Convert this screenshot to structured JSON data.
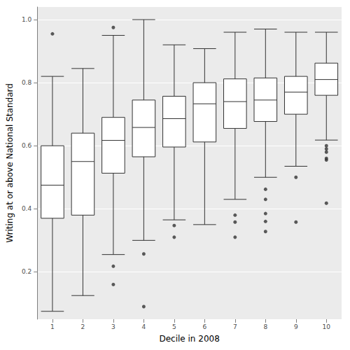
{
  "chart_data": {
    "type": "boxplot",
    "x_label": "Decile in 2008",
    "y_label": "Writing at or above National Standard",
    "categories": [
      "1",
      "2",
      "3",
      "4",
      "5",
      "6",
      "7",
      "8",
      "9",
      "10"
    ],
    "min": [
      0.075,
      0.125,
      0.255,
      0.3,
      0.365,
      0.35,
      0.43,
      0.5,
      0.535,
      0.618
    ],
    "q1": [
      0.37,
      0.38,
      0.513,
      0.565,
      0.596,
      0.612,
      0.655,
      0.677,
      0.7,
      0.76
    ],
    "median": [
      0.475,
      0.55,
      0.617,
      0.658,
      0.686,
      0.733,
      0.74,
      0.745,
      0.77,
      0.81
    ],
    "q3": [
      0.6,
      0.64,
      0.69,
      0.745,
      0.757,
      0.8,
      0.812,
      0.815,
      0.82,
      0.862
    ],
    "max": [
      0.82,
      0.845,
      0.95,
      1.0,
      0.92,
      0.908,
      0.96,
      0.97,
      0.96,
      0.96
    ],
    "outliers": [
      [
        0.955
      ],
      [],
      [
        0.975,
        0.218,
        0.16
      ],
      [
        0.257,
        0.09
      ],
      [
        0.347,
        0.31
      ],
      [],
      [
        0.38,
        0.358,
        0.31
      ],
      [
        0.462,
        0.43,
        0.385,
        0.36,
        0.328
      ],
      [
        0.5,
        0.358
      ],
      [
        0.6,
        0.59,
        0.58,
        0.56,
        0.555,
        0.418
      ]
    ],
    "color": "#333333",
    "ylim": [
      0.05,
      1.04
    ],
    "yticks": [
      0.2,
      0.4,
      0.6,
      0.8,
      {
        "value": 1,
        "label": "1.0"
      }
    ],
    "grid": true
  }
}
